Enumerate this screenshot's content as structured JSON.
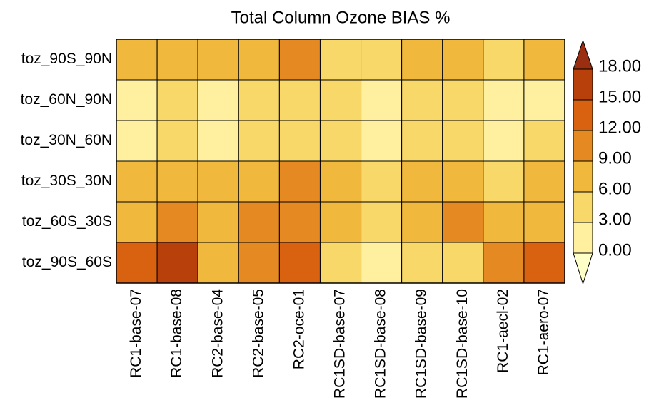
{
  "chart_data": {
    "type": "heatmap",
    "title": "Total Column Ozone BIAS %",
    "rows": [
      "toz_90S_90N",
      "toz_60N_90N",
      "toz_30N_60N",
      "toz_30S_30N",
      "toz_60S_30S",
      "toz_90S_60S"
    ],
    "columns": [
      "RC1-base-07",
      "RC1-base-08",
      "RC2-base-04",
      "RC2-base-05",
      "RC2-oce-01",
      "RC1SD-base-07",
      "RC1SD-base-08",
      "RC1SD-base-09",
      "RC1SD-base-10",
      "RC1-aecl-02",
      "RC1-aero-07"
    ],
    "values": [
      [
        7,
        7,
        7,
        7,
        10.5,
        5,
        5,
        6.5,
        6.5,
        5,
        6.5
      ],
      [
        2,
        4,
        2,
        4,
        4,
        4,
        2,
        4,
        4,
        2,
        2
      ],
      [
        2,
        4,
        2,
        4,
        4,
        4,
        2,
        4,
        4,
        2,
        4
      ],
      [
        7,
        7,
        7,
        7,
        10,
        7,
        5,
        7,
        7,
        5,
        7
      ],
      [
        7,
        10,
        7,
        10,
        10,
        7,
        5,
        7,
        10,
        7,
        7
      ],
      [
        13,
        16,
        7,
        10,
        13,
        5,
        2,
        5,
        4,
        10,
        13
      ]
    ],
    "zticks": [
      {
        "value": 0,
        "label": "0.00"
      },
      {
        "value": 3,
        "label": "3.00"
      },
      {
        "value": 6,
        "label": "6.00"
      },
      {
        "value": 9,
        "label": "9.00"
      },
      {
        "value": 12,
        "label": "12.00"
      },
      {
        "value": 15,
        "label": "15.00"
      },
      {
        "value": 18,
        "label": "18.00"
      }
    ],
    "colors": [
      "#ffffc8",
      "#fff0a0",
      "#f8d868",
      "#f0b93e",
      "#e58a22",
      "#d8620f",
      "#b8400a",
      "#9a2e10"
    ]
  }
}
